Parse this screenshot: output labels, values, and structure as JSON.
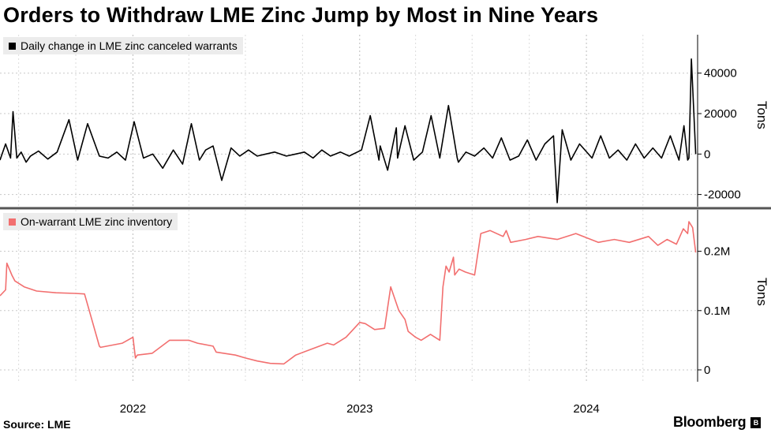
{
  "title": "Orders to Withdraw LME Zinc Jump by Most in Nine Years",
  "source": "Source: LME",
  "brand": "Bloomberg",
  "colors": {
    "top_series": "#000000",
    "bottom_series": "#f26f6f",
    "legend_bg": "#ececec",
    "panel_divider": "#555555"
  },
  "chart_data": [
    {
      "type": "line",
      "panel": "top",
      "legend": "Daily change in LME zinc canceled warrants",
      "ylabel": "Tons",
      "y_ticks": [
        -20000,
        0,
        20000,
        40000
      ],
      "y_tick_labels": [
        "-20000",
        "0",
        "20000",
        "40000"
      ],
      "ylim": [
        -26000,
        59000
      ],
      "xlim": [
        "2021-06-01",
        "2024-06-28"
      ],
      "series": [
        {
          "name": "Daily change in LME zinc canceled warrants",
          "x": [
            "2021-06-01",
            "2021-06-10",
            "2021-06-18",
            "2021-06-22",
            "2021-06-28",
            "2021-07-05",
            "2021-07-13",
            "2021-07-20",
            "2021-08-02",
            "2021-08-17",
            "2021-09-01",
            "2021-09-20",
            "2021-10-04",
            "2021-10-20",
            "2021-11-08",
            "2021-11-22",
            "2021-12-06",
            "2021-12-20",
            "2022-01-03",
            "2022-01-18",
            "2022-02-02",
            "2022-02-18",
            "2022-03-07",
            "2022-03-22",
            "2022-04-05",
            "2022-04-18",
            "2022-04-28",
            "2022-05-10",
            "2022-05-24",
            "2022-06-08",
            "2022-06-22",
            "2022-07-06",
            "2022-07-20",
            "2022-08-03",
            "2022-08-17",
            "2022-09-05",
            "2022-09-20",
            "2022-10-04",
            "2022-10-18",
            "2022-11-01",
            "2022-11-15",
            "2022-12-01",
            "2022-12-15",
            "2023-01-04",
            "2023-01-18",
            "2023-02-01",
            "2023-02-03",
            "2023-02-15",
            "2023-03-01",
            "2023-03-03",
            "2023-03-15",
            "2023-03-29",
            "2023-04-12",
            "2023-04-26",
            "2023-05-10",
            "2023-05-24",
            "2023-06-07",
            "2023-06-09",
            "2023-06-21",
            "2023-07-05",
            "2023-07-20",
            "2023-08-03",
            "2023-08-17",
            "2023-08-31",
            "2023-09-14",
            "2023-09-28",
            "2023-10-12",
            "2023-10-26",
            "2023-11-09",
            "2023-11-15",
            "2023-11-23",
            "2023-12-07",
            "2023-12-21",
            "2024-01-10",
            "2024-01-24",
            "2024-02-07",
            "2024-02-21",
            "2024-03-06",
            "2024-03-20",
            "2024-04-03",
            "2024-04-17",
            "2024-05-01",
            "2024-05-15",
            "2024-05-29",
            "2024-06-06",
            "2024-06-12",
            "2024-06-14",
            "2024-06-18",
            "2024-06-25"
          ],
          "y": [
            -3000,
            5000,
            -2000,
            21000,
            -2000,
            1000,
            -4000,
            -1000,
            1500,
            -2500,
            1000,
            17000,
            -3000,
            15000,
            -1000,
            -2000,
            1000,
            -3000,
            16000,
            -2000,
            0,
            -7000,
            2000,
            -5000,
            15000,
            -3000,
            2000,
            4000,
            -13000,
            3000,
            -1000,
            2000,
            -1000,
            0,
            1000,
            -1000,
            0,
            1000,
            -2000,
            2000,
            -1000,
            1000,
            -1000,
            2000,
            19000,
            -3000,
            4000,
            -8000,
            13000,
            -2000,
            14000,
            -3000,
            1000,
            19000,
            -2000,
            24000,
            -2000,
            -4000,
            1000,
            -1000,
            3000,
            -2000,
            8000,
            -3000,
            -1000,
            7000,
            -3000,
            5000,
            9000,
            -24000,
            12000,
            -3000,
            5000,
            -2000,
            9000,
            -2000,
            2000,
            -3000,
            5000,
            -2000,
            3000,
            -2000,
            9000,
            -3000,
            14000,
            -3000,
            -2000,
            47000,
            0
          ]
        }
      ]
    },
    {
      "type": "line",
      "panel": "bottom",
      "legend": "On-warrant LME zinc inventory",
      "ylabel": "Tons",
      "y_ticks": [
        0,
        100000,
        200000
      ],
      "y_tick_labels": [
        "0",
        "0.1M",
        "0.2M"
      ],
      "ylim": [
        -20000,
        270000
      ],
      "xlim": [
        "2021-06-01",
        "2024-06-28"
      ],
      "series": [
        {
          "name": "On-warrant LME zinc inventory",
          "x": [
            "2021-06-01",
            "2021-06-10",
            "2021-06-12",
            "2021-06-20",
            "2021-06-25",
            "2021-07-10",
            "2021-07-30",
            "2021-08-30",
            "2021-09-30",
            "2021-10-15",
            "2021-10-20",
            "2021-11-08",
            "2021-11-10",
            "2021-12-15",
            "2022-01-01",
            "2022-01-05",
            "2022-01-08",
            "2022-02-01",
            "2022-03-01",
            "2022-04-01",
            "2022-04-15",
            "2022-05-10",
            "2022-05-15",
            "2022-06-15",
            "2022-07-01",
            "2022-07-20",
            "2022-08-10",
            "2022-09-01",
            "2022-09-20",
            "2022-10-15",
            "2022-11-10",
            "2022-11-20",
            "2022-12-10",
            "2023-01-01",
            "2023-01-10",
            "2023-01-25",
            "2023-02-10",
            "2023-02-20",
            "2023-03-05",
            "2023-03-15",
            "2023-03-20",
            "2023-04-01",
            "2023-04-10",
            "2023-04-25",
            "2023-05-10",
            "2023-05-15",
            "2023-05-20",
            "2023-05-25",
            "2023-06-01",
            "2023-06-03",
            "2023-06-10",
            "2023-06-20",
            "2023-07-05",
            "2023-07-15",
            "2023-07-30",
            "2023-08-20",
            "2023-08-25",
            "2023-09-01",
            "2023-09-25",
            "2023-10-15",
            "2023-11-15",
            "2023-12-15",
            "2024-01-20",
            "2024-02-15",
            "2024-03-10",
            "2024-04-10",
            "2024-04-25",
            "2024-05-10",
            "2024-05-25",
            "2024-06-05",
            "2024-06-12",
            "2024-06-14",
            "2024-06-20",
            "2024-06-25"
          ],
          "y": [
            125000,
            135000,
            180000,
            160000,
            150000,
            140000,
            133000,
            130000,
            129000,
            128000,
            110000,
            40000,
            38000,
            45000,
            55000,
            20000,
            25000,
            28000,
            50000,
            50000,
            45000,
            40000,
            30000,
            25000,
            20000,
            15000,
            11000,
            10000,
            25000,
            35000,
            45000,
            42000,
            55000,
            80000,
            78000,
            68000,
            70000,
            140000,
            100000,
            85000,
            65000,
            55000,
            50000,
            60000,
            50000,
            140000,
            175000,
            165000,
            190000,
            160000,
            170000,
            165000,
            160000,
            230000,
            235000,
            225000,
            235000,
            215000,
            220000,
            225000,
            220000,
            230000,
            215000,
            220000,
            215000,
            225000,
            210000,
            220000,
            212000,
            238000,
            230000,
            250000,
            240000,
            198000
          ]
        }
      ]
    }
  ],
  "x_ticks": [
    {
      "label": "2022",
      "date": "2022-01-01"
    },
    {
      "label": "2023",
      "date": "2023-01-01"
    },
    {
      "label": "2024",
      "date": "2024-01-01"
    }
  ]
}
